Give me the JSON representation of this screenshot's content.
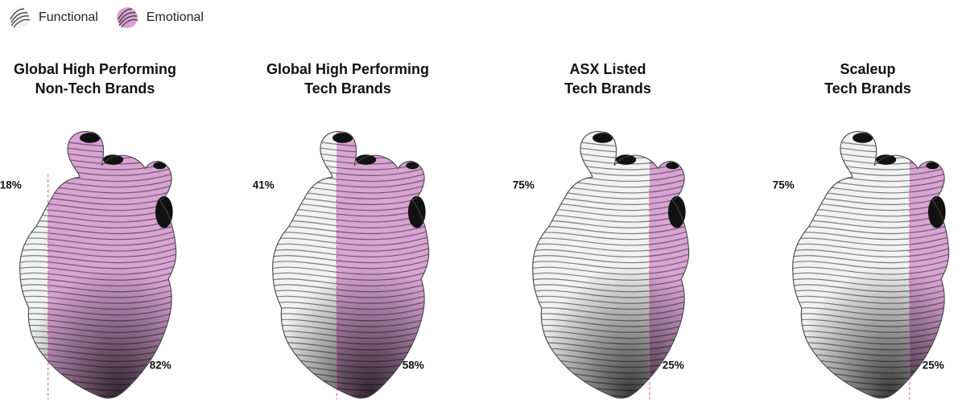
{
  "legend": {
    "functional_label": "Functional",
    "emotional_label": "Emotional"
  },
  "colors": {
    "emotional": "#d9a3d4",
    "functional": "#f2f2f2",
    "ink": "#1a1a1a",
    "divider": "#d44a8a"
  },
  "chart_data": {
    "type": "bar",
    "categories": [
      "Global High Performing Non-Tech Brands",
      "Global High Performing Tech Brands",
      "ASX Listed Tech Brands",
      "Scaleup Tech Brands"
    ],
    "title_lines": [
      [
        "Global High Performing",
        "Non-Tech Brands"
      ],
      [
        "Global High Performing",
        "Tech Brands"
      ],
      [
        "ASX Listed",
        "Tech Brands"
      ],
      [
        "Scaleup",
        "Tech Brands"
      ]
    ],
    "series": [
      {
        "name": "Functional",
        "values": [
          18,
          41,
          75,
          75
        ],
        "labels": [
          "18%",
          "41%",
          "75%",
          "75%"
        ]
      },
      {
        "name": "Emotional",
        "values": [
          82,
          58,
          25,
          25
        ],
        "labels": [
          "82%",
          "58%",
          "25%",
          "25%"
        ]
      }
    ],
    "ylim": [
      0,
      100
    ],
    "legend_position": "top-left"
  }
}
